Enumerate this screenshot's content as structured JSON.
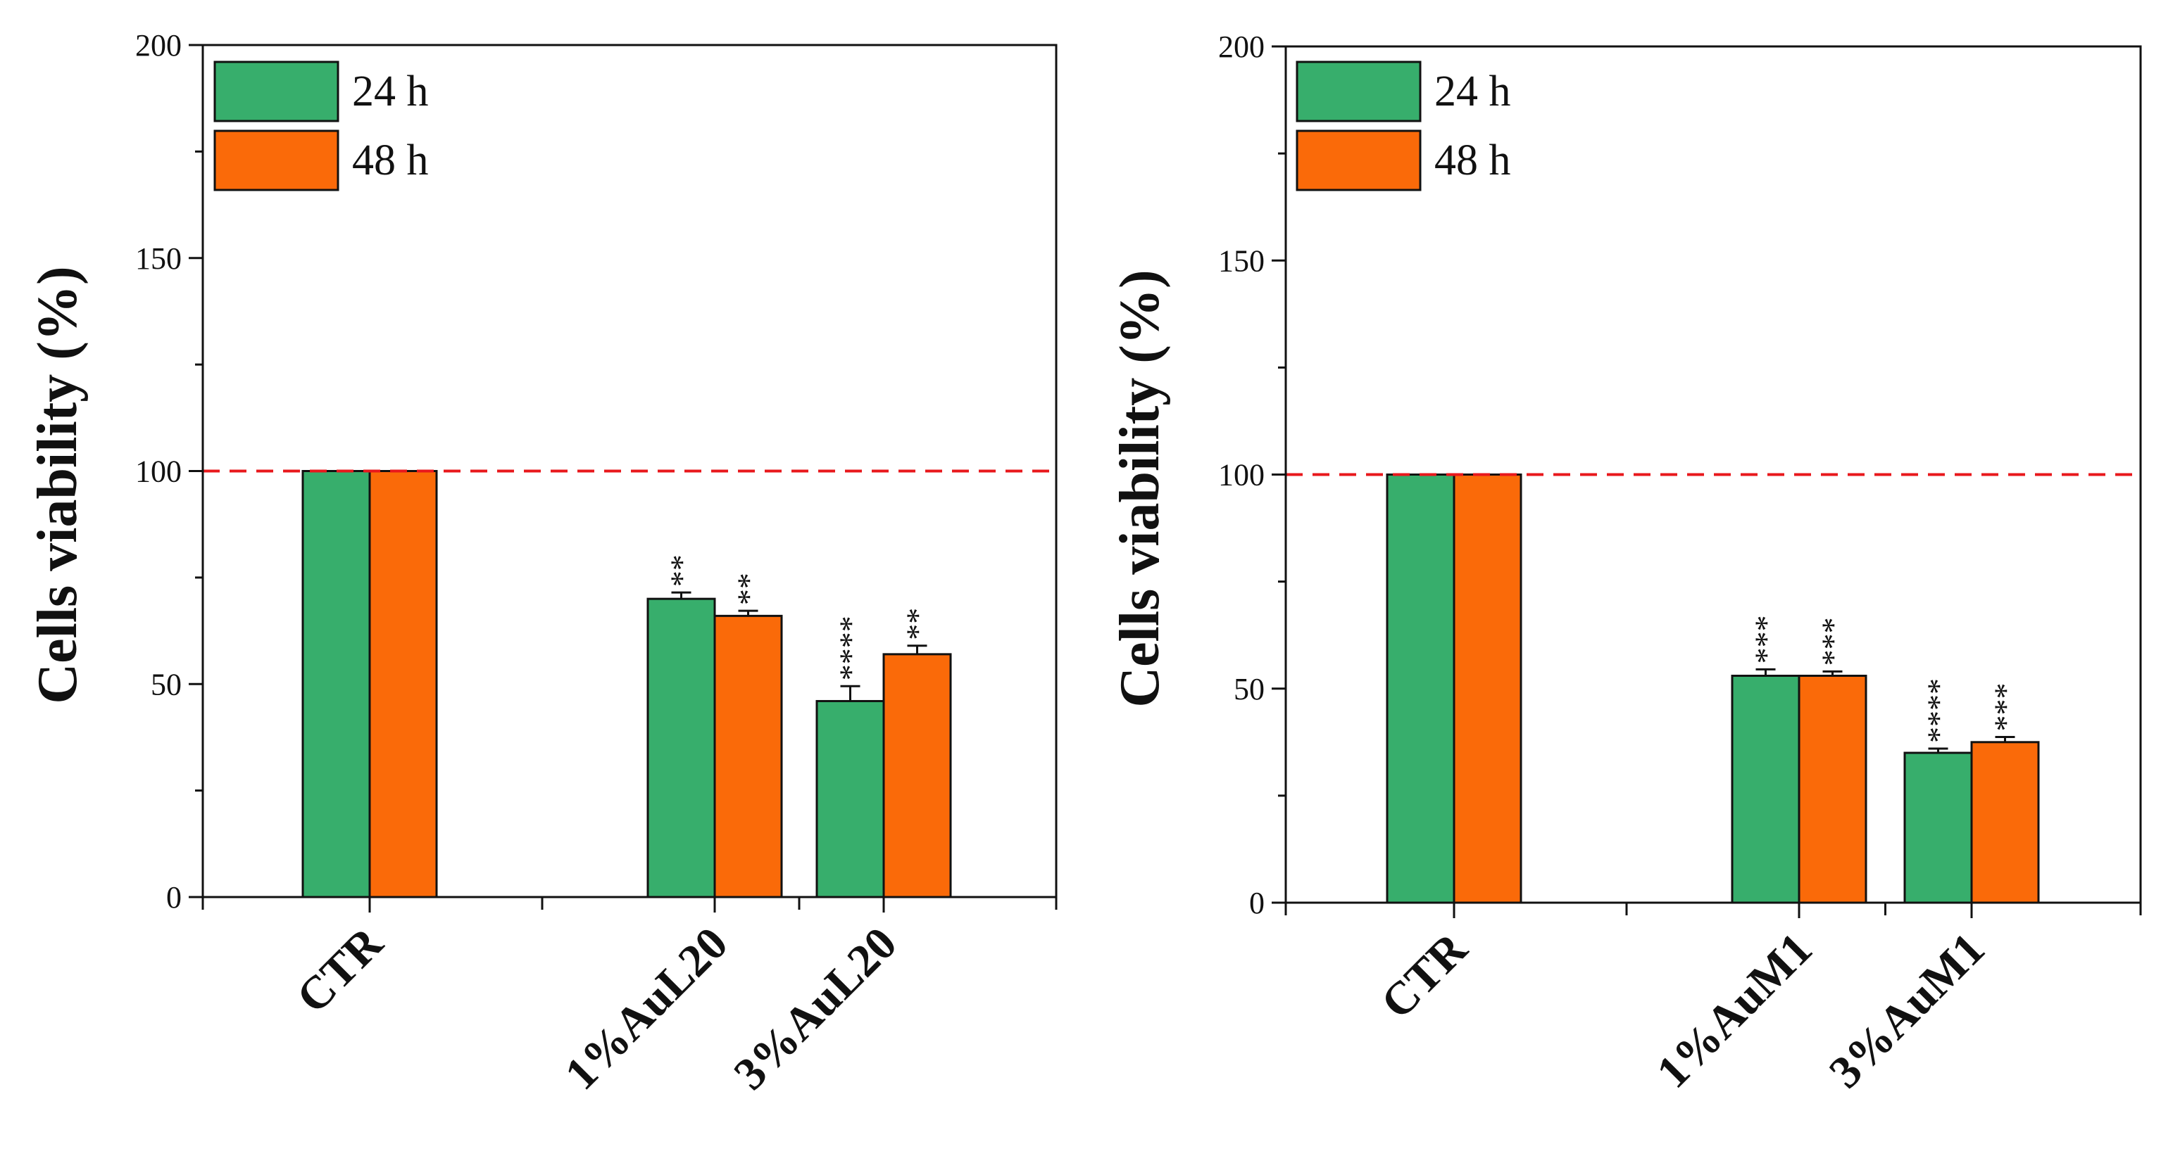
{
  "colors": {
    "h24": "#37ae6c",
    "h48": "#fa6a09",
    "reference": "#e8181c",
    "axis": "#111111"
  },
  "chart_data": [
    {
      "type": "bar",
      "ylabel": "Cells viability (%)",
      "ylim": [
        0,
        200
      ],
      "yticks": [
        0,
        50,
        100,
        150,
        200
      ],
      "reference_line": 100,
      "legend_position": "top-left",
      "categories": [
        "CTR",
        "1%AuL20",
        "3%AuL20"
      ],
      "series": [
        {
          "name": "24 h",
          "values": [
            100,
            70,
            46
          ],
          "errors": [
            0,
            1.5,
            3.5
          ],
          "significance": [
            "",
            "**",
            "****"
          ]
        },
        {
          "name": "48 h",
          "values": [
            100,
            66,
            57
          ],
          "errors": [
            0,
            1.2,
            2.0
          ],
          "significance": [
            "",
            "**",
            "**"
          ]
        }
      ]
    },
    {
      "type": "bar",
      "ylabel": "Cells viability (%)",
      "ylim": [
        0,
        200
      ],
      "yticks": [
        0,
        50,
        100,
        150,
        200
      ],
      "reference_line": 100,
      "legend_position": "top-left",
      "categories": [
        "CTR",
        "1%AuM1",
        "3%AuM1"
      ],
      "series": [
        {
          "name": "24 h",
          "values": [
            100,
            53,
            35
          ],
          "errors": [
            0,
            1.5,
            1.0
          ],
          "significance": [
            "",
            "***",
            "****"
          ]
        },
        {
          "name": "48 h",
          "values": [
            100,
            53,
            37.5
          ],
          "errors": [
            0,
            1.0,
            1.2
          ],
          "significance": [
            "",
            "***",
            "***"
          ]
        }
      ]
    }
  ]
}
